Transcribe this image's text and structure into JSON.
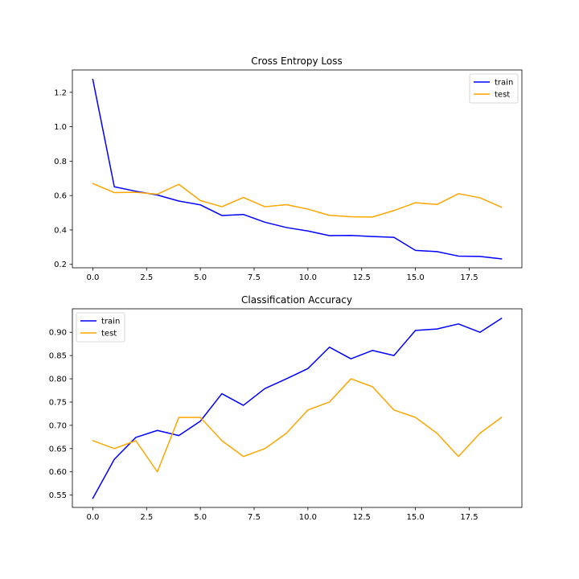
{
  "chart_data": [
    {
      "type": "line",
      "title": "Cross Entropy Loss",
      "xlabel": "",
      "ylabel": "",
      "xlim": [
        -0.95,
        19.95
      ],
      "ylim": [
        0.18,
        1.33
      ],
      "xticks": [
        0.0,
        2.5,
        5.0,
        7.5,
        10.0,
        12.5,
        15.0,
        17.5
      ],
      "xtick_labels": [
        "0.0",
        "2.5",
        "5.0",
        "7.5",
        "10.0",
        "12.5",
        "15.0",
        "17.5"
      ],
      "yticks": [
        0.2,
        0.4,
        0.6,
        0.8,
        1.0,
        1.2
      ],
      "ytick_labels": [
        "0.2",
        "0.4",
        "0.6",
        "0.8",
        "1.0",
        "1.2"
      ],
      "grid": false,
      "legend": "top-right",
      "x": [
        0,
        1,
        2,
        3,
        4,
        5,
        6,
        7,
        8,
        9,
        10,
        11,
        12,
        13,
        14,
        15,
        16,
        17,
        18,
        19
      ],
      "series": [
        {
          "name": "train",
          "color": "#0000ff",
          "values": [
            1.275,
            0.651,
            0.625,
            0.603,
            0.568,
            0.546,
            0.484,
            0.49,
            0.445,
            0.414,
            0.394,
            0.367,
            0.368,
            0.362,
            0.357,
            0.281,
            0.274,
            0.248,
            0.246,
            0.232
          ]
        },
        {
          "name": "test",
          "color": "#ffa500",
          "values": [
            0.67,
            0.617,
            0.619,
            0.608,
            0.665,
            0.571,
            0.535,
            0.589,
            0.535,
            0.547,
            0.521,
            0.485,
            0.477,
            0.475,
            0.513,
            0.558,
            0.548,
            0.611,
            0.587,
            0.532
          ]
        }
      ]
    },
    {
      "type": "line",
      "title": "Classification Accuracy",
      "xlabel": "",
      "ylabel": "",
      "xlim": [
        -0.95,
        19.95
      ],
      "ylim": [
        0.5235,
        0.9505
      ],
      "xticks": [
        0.0,
        2.5,
        5.0,
        7.5,
        10.0,
        12.5,
        15.0,
        17.5
      ],
      "xtick_labels": [
        "0.0",
        "2.5",
        "5.0",
        "7.5",
        "10.0",
        "12.5",
        "15.0",
        "17.5"
      ],
      "yticks": [
        0.55,
        0.6,
        0.65,
        0.7,
        0.75,
        0.8,
        0.85,
        0.9
      ],
      "ytick_labels": [
        "0.55",
        "0.60",
        "0.65",
        "0.70",
        "0.75",
        "0.80",
        "0.85",
        "0.90"
      ],
      "grid": false,
      "legend": "top-left",
      "x": [
        0,
        1,
        2,
        3,
        4,
        5,
        6,
        7,
        8,
        9,
        10,
        11,
        12,
        13,
        14,
        15,
        16,
        17,
        18,
        19
      ],
      "series": [
        {
          "name": "train",
          "color": "#0000ff",
          "values": [
            0.543,
            0.627,
            0.674,
            0.689,
            0.678,
            0.709,
            0.768,
            0.743,
            0.779,
            0.8,
            0.822,
            0.868,
            0.843,
            0.861,
            0.85,
            0.904,
            0.907,
            0.918,
            0.9,
            0.93
          ]
        },
        {
          "name": "test",
          "color": "#ffa500",
          "values": [
            0.667,
            0.65,
            0.667,
            0.6,
            0.717,
            0.717,
            0.667,
            0.633,
            0.65,
            0.683,
            0.733,
            0.75,
            0.8,
            0.783,
            0.733,
            0.717,
            0.683,
            0.633,
            0.683,
            0.717
          ]
        }
      ]
    }
  ]
}
